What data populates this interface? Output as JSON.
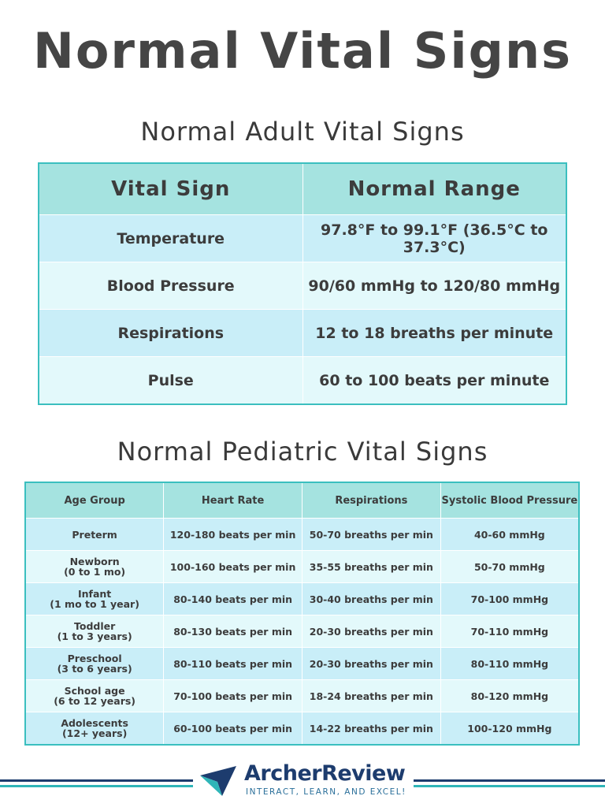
{
  "header": {
    "title": "Normal Vital Signs"
  },
  "adult": {
    "title": "Normal Adult Vital Signs",
    "columns": [
      "Vital Sign",
      "Normal Range"
    ],
    "rows": [
      [
        "Temperature",
        "97.8°F to 99.1°F (36.5°C to 37.3°C)"
      ],
      [
        "Blood Pressure",
        "90/60 mmHg to 120/80 mmHg"
      ],
      [
        "Respirations",
        "12 to 18 breaths per minute"
      ],
      [
        "Pulse",
        "60 to 100 beats per minute"
      ]
    ]
  },
  "pediatric": {
    "title": "Normal Pediatric Vital Signs",
    "columns": [
      "Age Group",
      "Heart Rate",
      "Respirations",
      "Systolic Blood Pressure"
    ],
    "rows": [
      [
        [
          "Preterm"
        ],
        "120-180 beats per min",
        "50-70 breaths per min",
        "40-60 mmHg"
      ],
      [
        [
          "Newborn",
          "(0 to 1 mo)"
        ],
        "100-160 beats per min",
        "35-55 breaths per min",
        "50-70 mmHg"
      ],
      [
        [
          "Infant",
          "(1 mo to 1 year)"
        ],
        "80-140 beats per min",
        "30-40 breaths per min",
        "70-100 mmHg"
      ],
      [
        [
          "Toddler",
          "(1 to 3 years)"
        ],
        "80-130 beats per min",
        "20-30 breaths per min",
        "70-110 mmHg"
      ],
      [
        [
          "Preschool",
          "(3 to 6 years)"
        ],
        "80-110 beats per min",
        "20-30 breaths per min",
        "80-110 mmHg"
      ],
      [
        [
          "School age",
          "(6 to 12 years)"
        ],
        "70-100 beats per min",
        "18-24 breaths per min",
        "80-120 mmHg"
      ],
      [
        [
          "Adolescents",
          "(12+ years)"
        ],
        "60-100 beats per min",
        "14-22 breaths per min",
        "100-120 mmHg"
      ]
    ]
  },
  "footer": {
    "brand": "ArcherReview",
    "tagline": "INTERACT, LEARN, AND EXCEL!"
  }
}
